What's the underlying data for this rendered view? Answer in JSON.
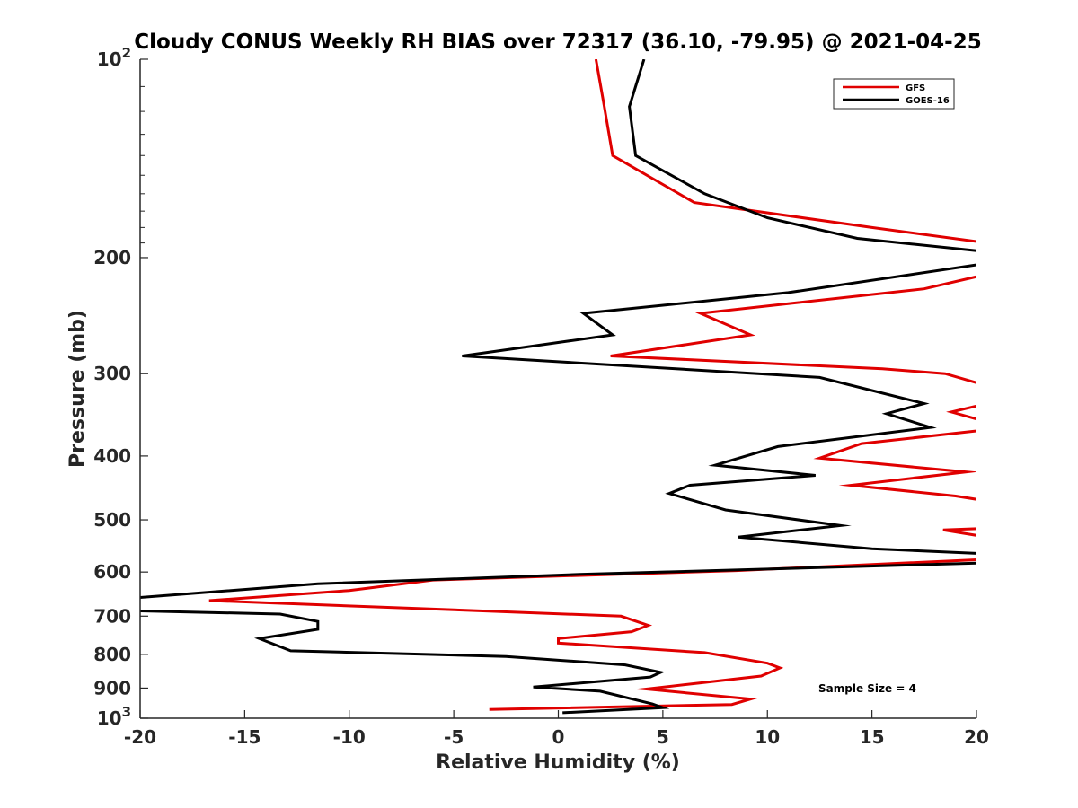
{
  "chart_data": {
    "type": "line",
    "title": "Cloudy CONUS Weekly RH BIAS over 72317 (36.10, -79.95) @ 2021-04-25",
    "xlabel": "Relative Humidity (%)",
    "ylabel": "Pressure (mb)",
    "xlim": [
      -20,
      20
    ],
    "ylim": [
      100,
      1000
    ],
    "y_scale": "log",
    "y_reversed": true,
    "x_ticks": [
      "-20",
      "-15",
      "-10",
      "-5",
      "0",
      "5",
      "10",
      "15",
      "20"
    ],
    "y_ticks": [
      {
        "value": 100,
        "base": "10",
        "exp": "2"
      },
      {
        "value": 200,
        "label": "200"
      },
      {
        "value": 300,
        "label": "300"
      },
      {
        "value": 400,
        "label": "400"
      },
      {
        "value": 500,
        "label": "500"
      },
      {
        "value": 600,
        "label": "600"
      },
      {
        "value": 700,
        "label": "700"
      },
      {
        "value": 800,
        "label": "800"
      },
      {
        "value": 900,
        "label": "900"
      },
      {
        "value": 1000,
        "base": "10",
        "exp": "3"
      }
    ],
    "grid": false,
    "legend_position": "top-right",
    "annotation": "Sample Size = 4",
    "series": [
      {
        "name": "GFS",
        "color": "#e00000",
        "points": [
          [
            1.8,
            100
          ],
          [
            2.2,
            118
          ],
          [
            2.6,
            140
          ],
          [
            6.5,
            165
          ],
          [
            15,
            180
          ],
          [
            20.5,
            190
          ],
          [
            null,
            null
          ],
          [
            20.5,
            212
          ],
          [
            17.5,
            223
          ],
          [
            6.8,
            243
          ],
          [
            9.2,
            262
          ],
          [
            2.5,
            282
          ],
          [
            15.5,
            295
          ],
          [
            18.5,
            300
          ],
          [
            20.5,
            313
          ],
          [
            null,
            null
          ],
          [
            20.5,
            333
          ],
          [
            18.8,
            343
          ],
          [
            20.5,
            355
          ],
          [
            null,
            null
          ],
          [
            20.5,
            365
          ],
          [
            14.5,
            383
          ],
          [
            12.5,
            403
          ],
          [
            19.5,
            423
          ],
          [
            14,
            443
          ],
          [
            19,
            460
          ],
          [
            20.5,
            468
          ],
          [
            null,
            null
          ],
          [
            20.5,
            515
          ],
          [
            18.4,
            518
          ],
          [
            20.5,
            531
          ],
          [
            null,
            null
          ],
          [
            20.5,
            574
          ],
          [
            8.5,
            597
          ],
          [
            -6,
            617
          ],
          [
            -10,
            640
          ],
          [
            -16.7,
            663
          ],
          [
            3,
            700
          ],
          [
            4.3,
            723
          ],
          [
            3.5,
            739
          ],
          [
            0,
            757
          ],
          [
            0,
            769
          ],
          [
            7,
            795
          ],
          [
            10,
            825
          ],
          [
            10.6,
            839
          ],
          [
            9.7,
            863
          ],
          [
            4.2,
            903
          ],
          [
            9.2,
            935
          ],
          [
            8.3,
            953
          ],
          [
            -3.3,
            970
          ]
        ]
      },
      {
        "name": "GOES-16",
        "color": "#000000",
        "points": [
          [
            4.1,
            100
          ],
          [
            3.4,
            118
          ],
          [
            3.7,
            140
          ],
          [
            7,
            160
          ],
          [
            10,
            174
          ],
          [
            14.3,
            187
          ],
          [
            20.5,
            196
          ],
          [
            null,
            null
          ],
          [
            20.5,
            204
          ],
          [
            11,
            226
          ],
          [
            1.2,
            243
          ],
          [
            2.6,
            262
          ],
          [
            -4.6,
            282
          ],
          [
            12.5,
            304
          ],
          [
            17.5,
            333
          ],
          [
            15.7,
            345
          ],
          [
            17.8,
            362
          ],
          [
            10.5,
            387
          ],
          [
            7.5,
            413
          ],
          [
            12.3,
            428
          ],
          [
            6.3,
            443
          ],
          [
            5.3,
            456
          ],
          [
            8,
            483
          ],
          [
            13.5,
            510
          ],
          [
            8.6,
            531
          ],
          [
            15,
            553
          ],
          [
            20.5,
            563
          ],
          [
            null,
            null
          ],
          [
            20.5,
            581
          ],
          [
            1,
            605
          ],
          [
            -11.5,
            625
          ],
          [
            -20.3,
            657
          ],
          [
            null,
            null
          ],
          [
            -20.3,
            687
          ],
          [
            -13.3,
            695
          ],
          [
            -11.5,
            713
          ],
          [
            -11.5,
            733
          ],
          [
            -14.3,
            757
          ],
          [
            -12.8,
            790
          ],
          [
            -2.5,
            806
          ],
          [
            3.2,
            830
          ],
          [
            4.9,
            852
          ],
          [
            4.4,
            866
          ],
          [
            -1.2,
            897
          ],
          [
            2,
            910
          ],
          [
            4.5,
            951
          ],
          [
            5,
            964
          ],
          [
            0.2,
            981
          ]
        ]
      }
    ]
  }
}
